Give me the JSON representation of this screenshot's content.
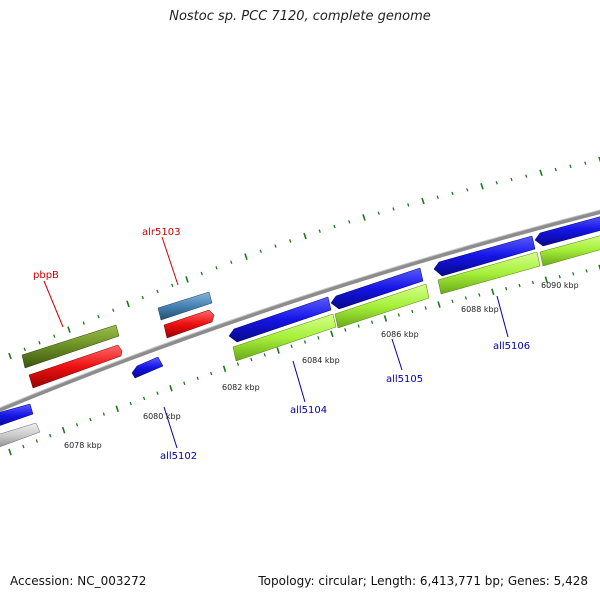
{
  "header": {
    "title": "Nostoc sp. PCC 7120, complete genome"
  },
  "footer": {
    "accession": "Accession: NC_003272",
    "summary": "Topology: circular; Length: 6,413,771 bp; Genes: 5,428"
  },
  "colors": {
    "backbone": "#8c8c8c",
    "tick": "#1a7a1a",
    "forward_label": "#cc0000",
    "reverse_label": "#0000aa",
    "blue": "#1414e6",
    "red": "#ee1111",
    "olive": "#6b8e23",
    "steelblue": "#4682b4",
    "lime": "#a6f03a",
    "gray": "#c8c8c8"
  },
  "diagram": {
    "kbp_labels": [
      "6078 kbp",
      "6080 kbp",
      "6082 kbp",
      "6084 kbp",
      "6086 kbp",
      "6088 kbp",
      "6090 kbp"
    ],
    "features": [
      {
        "name": "gene-blue-left-edge",
        "color": "blue"
      },
      {
        "name": "gene-gray-left-edge",
        "color": "gray"
      },
      {
        "name": "gene-pbpB",
        "color": "olive"
      },
      {
        "name": "cds-pbpB",
        "color": "red"
      },
      {
        "name": "gene-all5102",
        "color": "blue"
      },
      {
        "name": "gene-alr5103",
        "color": "steelblue"
      },
      {
        "name": "cds-alr5103",
        "color": "red"
      },
      {
        "name": "gene-all5104",
        "color": "blue"
      },
      {
        "name": "cds-all5104",
        "color": "lime"
      },
      {
        "name": "gene-all5105",
        "color": "blue"
      },
      {
        "name": "cds-all5105",
        "color": "lime"
      },
      {
        "name": "gene-all5106",
        "color": "blue"
      },
      {
        "name": "cds-all5106",
        "color": "lime"
      },
      {
        "name": "gene-right-edge",
        "color": "blue"
      },
      {
        "name": "cds-right-edge",
        "color": "lime"
      }
    ],
    "gene_labels": [
      {
        "text": "pbpB",
        "strand": "forward"
      },
      {
        "text": "alr5103",
        "strand": "forward"
      },
      {
        "text": "all5102",
        "strand": "reverse"
      },
      {
        "text": "all5104",
        "strand": "reverse"
      },
      {
        "text": "all5105",
        "strand": "reverse"
      },
      {
        "text": "all5106",
        "strand": "reverse"
      }
    ]
  }
}
